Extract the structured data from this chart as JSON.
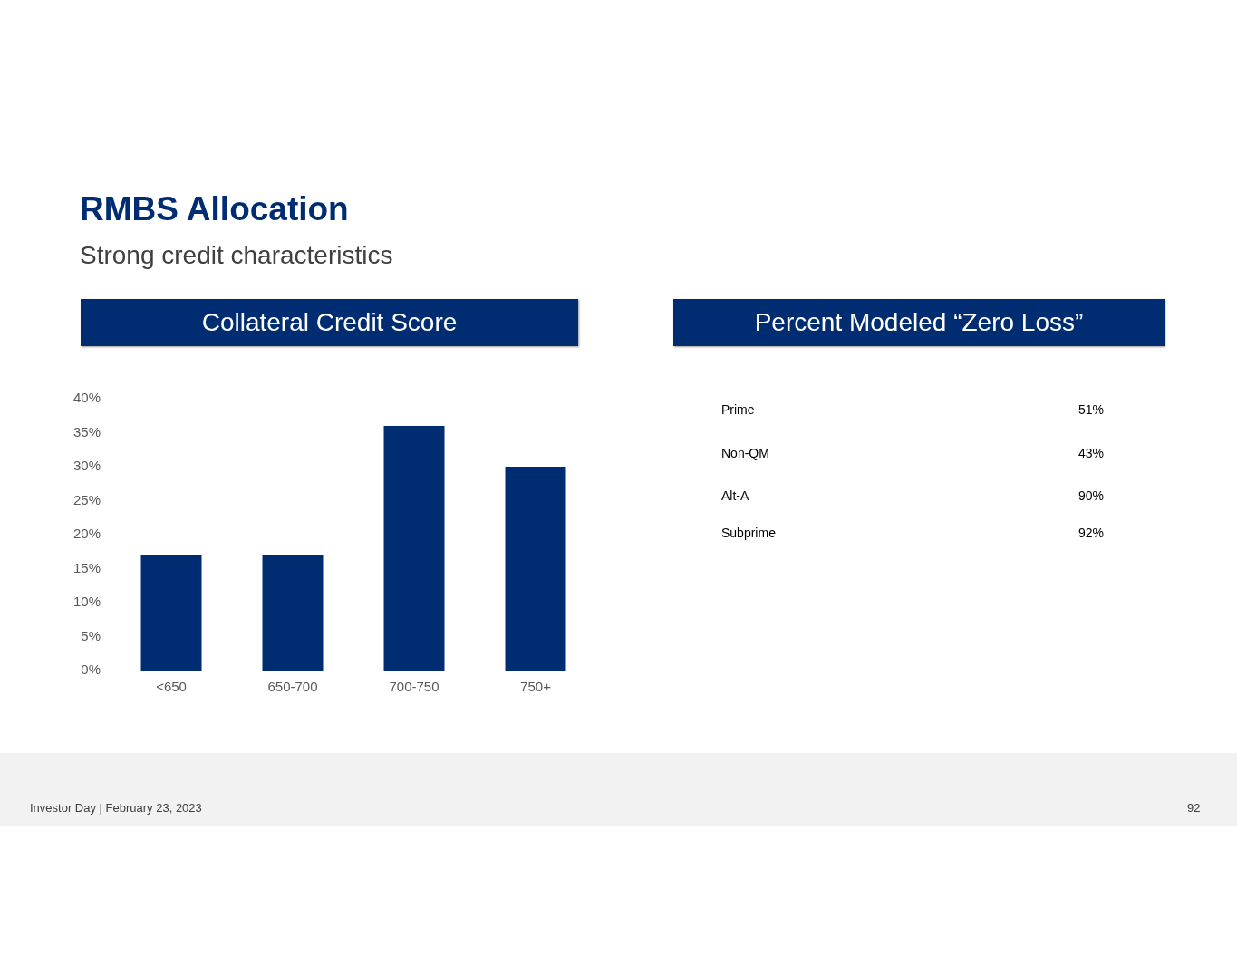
{
  "chart_data": [
    {
      "type": "bar",
      "title": "Collateral Credit Score",
      "annotations": [
        "RMBS Allocation",
        "Strong credit characteristics"
      ],
      "categories": [
        "<650",
        "650-700",
        "700-750",
        "750+"
      ],
      "values": [
        17,
        17,
        36,
        30
      ],
      "color": "#002d72",
      "ylim": [
        0,
        40
      ],
      "yticks": [
        {
          "value": 0,
          "label": "0%"
        },
        {
          "value": 5,
          "label": "5%"
        },
        {
          "value": 10,
          "label": "10%"
        },
        {
          "value": 15,
          "label": "15%"
        },
        {
          "value": 20,
          "label": "20%"
        },
        {
          "value": 25,
          "label": "25%"
        },
        {
          "value": 30,
          "label": "30%"
        },
        {
          "value": 35,
          "label": "35%"
        },
        {
          "value": 40,
          "label": "40%"
        }
      ]
    },
    {
      "type": "other",
      "title": "Percent Modeled “Zero Loss”",
      "categories": [
        "Prime",
        "Non-QM",
        "Alt-A",
        "Subprime"
      ],
      "value_labels": [
        "51%",
        "43%",
        "90%",
        "92%"
      ],
      "annotations": [
        "Investor Day | February 23, 2023",
        "92"
      ]
    }
  ]
}
